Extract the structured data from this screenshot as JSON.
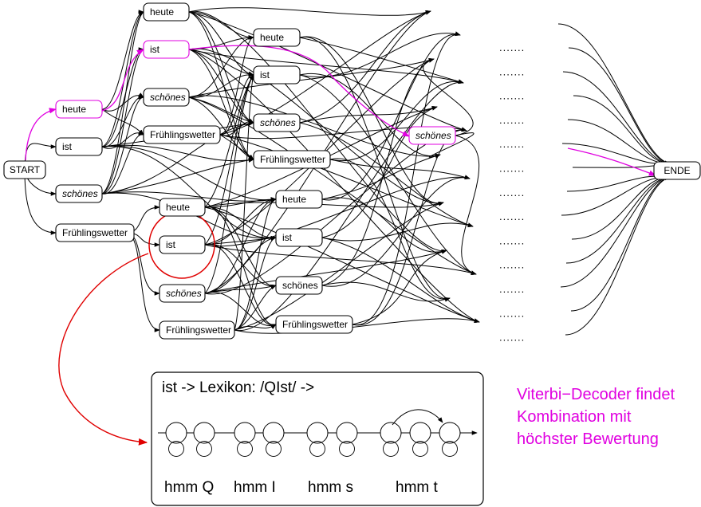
{
  "colors": {
    "default": "#000000",
    "highlight": "#e000e0",
    "lexicon_link": "#e00000"
  },
  "nodes": {
    "start": "START",
    "end": "ENDE",
    "c1_heute": "heute",
    "c1_ist": "ist",
    "c1_schoenes": "schönes",
    "c1_fw": "Frühlingswetter",
    "c2a_heute": "heute",
    "c2a_ist": "ist",
    "c2a_schoenes": "schönes",
    "c2a_fw": "Frühlingswetter",
    "c2d_heute": "heute",
    "c2d_ist": "ist",
    "c2d_schoenes": "schönes",
    "c2d_fw": "Frühlingswetter",
    "c3a_heute": "heute",
    "c3a_ist": "ist",
    "c3a_schoenes": "schönes",
    "c3a_fw": "Frühlingswetter",
    "c3d_heute": "heute",
    "c3d_ist": "ist",
    "c3d_schoenes": "schönes",
    "c3d_fw": "Frühlingswetter",
    "c4_schoenes": "schönes"
  },
  "ellipsis": ".......",
  "lexicon": {
    "title": "ist  ->  Lexikon:  /QIst/    ->",
    "hmm_labels": [
      "hmm Q",
      "hmm I",
      "hmm s",
      "hmm t"
    ]
  },
  "note": [
    "Viterbi−Decoder findet",
    "Kombination mit",
    "höchster Bewertung"
  ]
}
